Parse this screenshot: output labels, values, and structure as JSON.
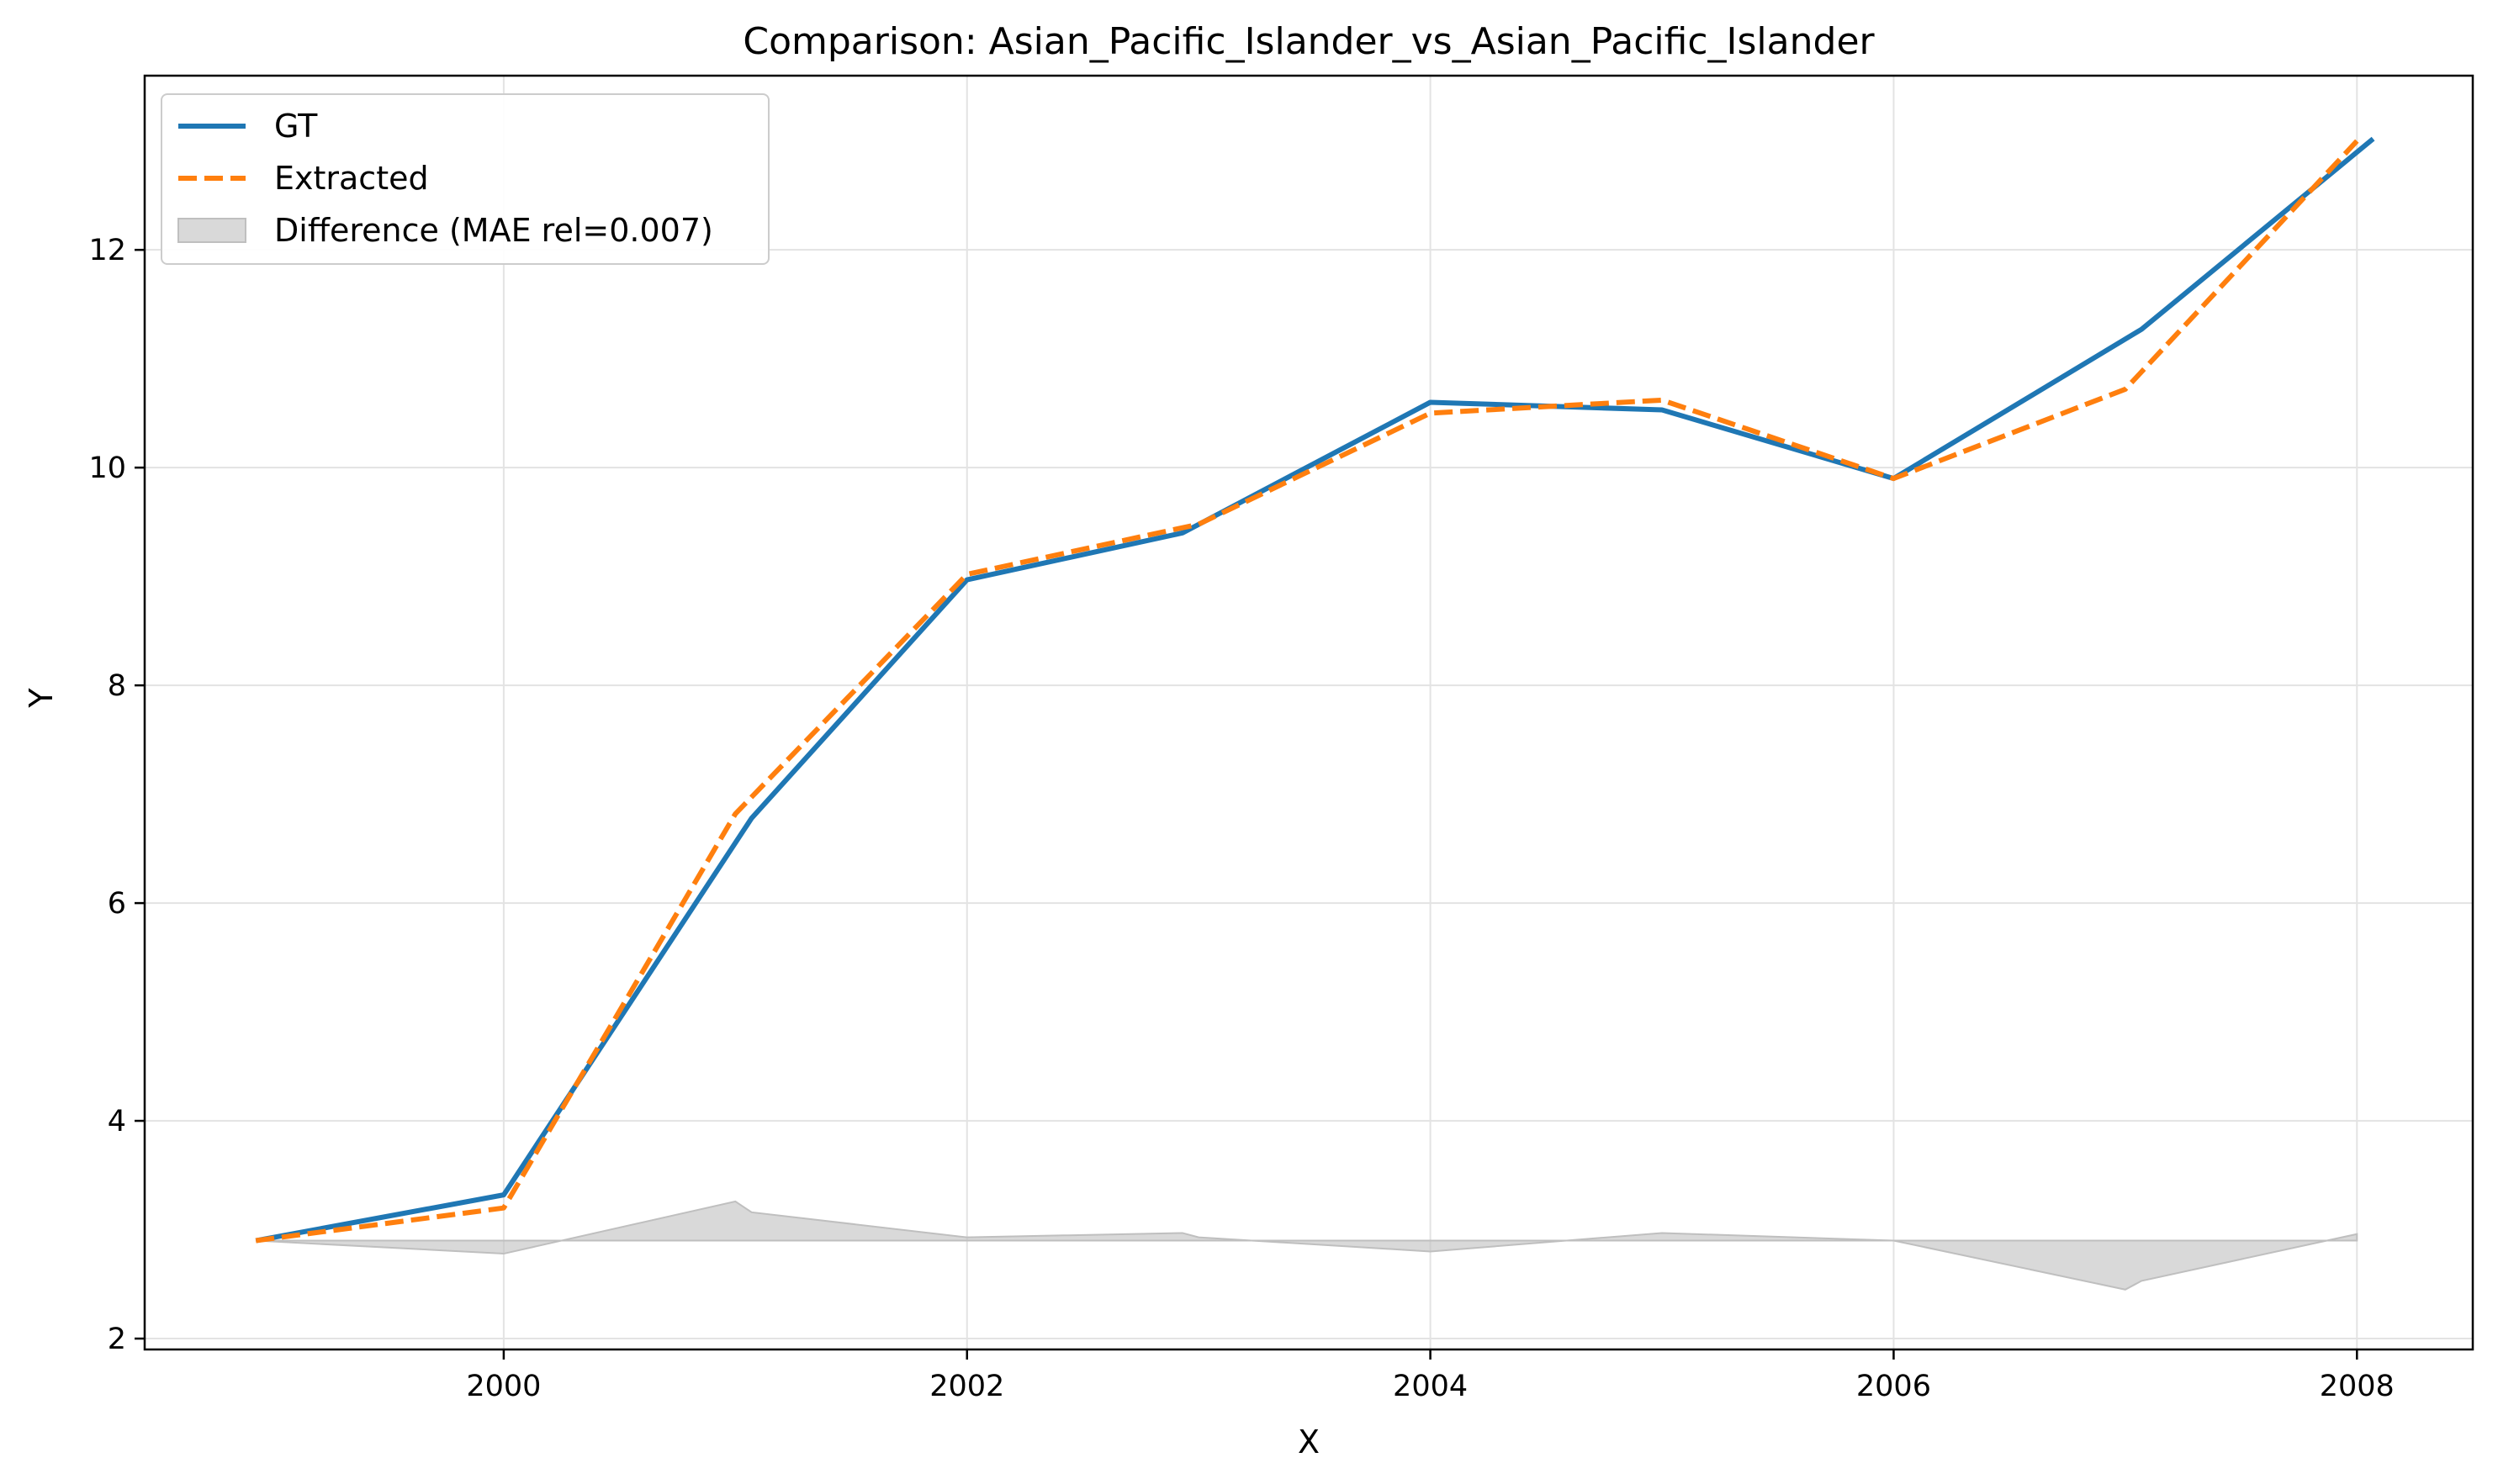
{
  "chart_data": {
    "type": "line",
    "title": "Comparison: Asian_Pacific_Islander_vs_Asian_Pacific_Islander",
    "xlabel": "X",
    "ylabel": "Y",
    "xlim": [
      1998.45,
      2008.5
    ],
    "ylim": [
      1.9,
      13.6
    ],
    "xticks": [
      2000,
      2002,
      2004,
      2006,
      2008
    ],
    "yticks": [
      2,
      4,
      6,
      8,
      10,
      12
    ],
    "grid": true,
    "legend_position": "top-left",
    "x": [
      1998.93,
      2000.0,
      2001.07,
      2002.0,
      2002.93,
      2004.0,
      2005.0,
      2006.0,
      2007.07,
      2008.07
    ],
    "series": [
      {
        "name": "GT",
        "color": "#1f77b4",
        "style": "solid",
        "values": [
          2.9,
          3.32,
          6.78,
          8.97,
          9.4,
          10.6,
          10.53,
          9.9,
          11.27,
          13.02
        ]
      },
      {
        "name": "Extracted",
        "color": "#ff7f0e",
        "style": "dashed",
        "x": [
          1998.93,
          2000.0,
          2001.0,
          2002.0,
          2003.0,
          2004.0,
          2005.0,
          2006.0,
          2007.0,
          2008.0
        ],
        "values": [
          2.9,
          3.2,
          6.82,
          9.02,
          9.48,
          10.5,
          10.62,
          9.9,
          10.72,
          13.0
        ]
      }
    ],
    "difference": {
      "name": "Difference (MAE rel=0.007)",
      "color": "#bfbfbf",
      "baseline": 2.9,
      "x": [
        1998.93,
        2000.0,
        2001.0,
        2001.07,
        2002.0,
        2002.93,
        2003.0,
        2004.0,
        2005.0,
        2006.0,
        2007.0,
        2007.07,
        2008.0
      ],
      "values": [
        2.9,
        2.78,
        3.26,
        3.16,
        2.93,
        2.97,
        2.93,
        2.8,
        2.97,
        2.9,
        2.45,
        2.53,
        2.96
      ]
    }
  }
}
